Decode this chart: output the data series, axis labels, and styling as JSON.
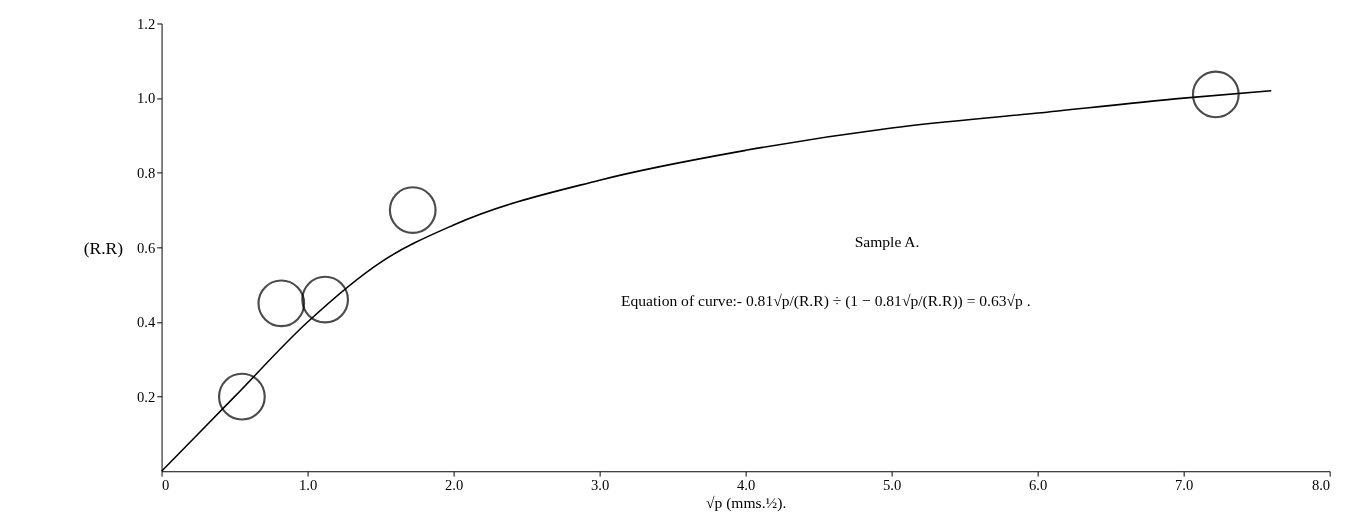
{
  "chart_data": {
    "type": "scatter",
    "xlabel": "√p (mms.½).",
    "ylabel": "(R.R)",
    "xlim": [
      0,
      8
    ],
    "ylim": [
      0,
      1.2
    ],
    "xticks": [
      0,
      {
        "value": 1,
        "label": "1.0"
      },
      {
        "value": 2,
        "label": "2.0"
      },
      {
        "value": 3,
        "label": "3.0"
      },
      {
        "value": 4,
        "label": "4.0"
      },
      {
        "value": 5,
        "label": "5.0"
      },
      {
        "value": 6,
        "label": "6.0"
      },
      {
        "value": 7,
        "label": "7.0"
      },
      {
        "value": 8,
        "label": "8.0"
      }
    ],
    "yticks": [
      0.2,
      0.4,
      0.6,
      0.8,
      {
        "value": 1,
        "label": "1.0"
      },
      1.2
    ],
    "grid": false,
    "marker": "circle",
    "series": [
      {
        "color": "#000000",
        "x": [
          0.55,
          0.82,
          1.12,
          1.72,
          7.22
        ],
        "values": [
          0.2,
          0.45,
          0.46,
          0.7,
          1.01
        ]
      },
      {
        "type": "line",
        "color": "#000000",
        "marker": "none",
        "line_style": "solid",
        "x": [
          0,
          0.5,
          1.0,
          1.5,
          2.0,
          3.0,
          4.0,
          5.0,
          6.0,
          7.0,
          7.6
        ],
        "values": [
          0,
          0.2,
          0.4,
          0.56,
          0.66,
          0.78,
          0.86,
          0.92,
          0.96,
          1.0,
          1.02
        ]
      }
    ],
    "annotations": [
      "Sample A.",
      "Equation of curve:- 0.81√p/(R.R) ÷ (1 − 0.81√p/(R.R)) = 0.63√p ."
    ]
  }
}
